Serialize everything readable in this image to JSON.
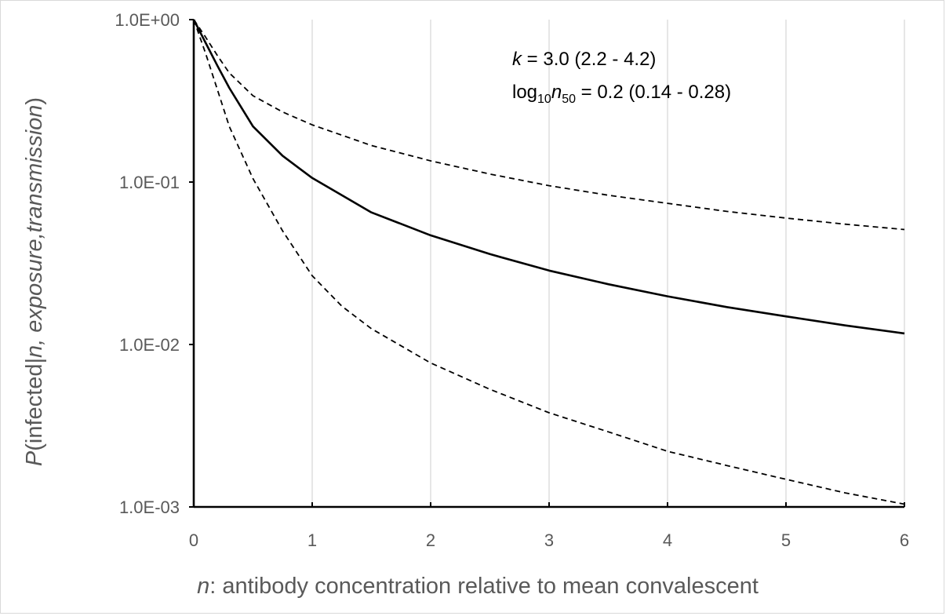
{
  "chart_data": {
    "type": "line",
    "title": "",
    "xlabel": {
      "var": "n",
      "rest": ": antibody concentration relative to mean convalescent"
    },
    "ylabel": {
      "p": "P",
      "open": "(infected",
      "bar": "|",
      "cond": "n, exposure,transmission",
      "close": ")"
    },
    "xlim": [
      0,
      6
    ],
    "ylim": [
      0.001,
      1
    ],
    "yscale": "log",
    "grid": "vertical",
    "x_ticks": [
      "0",
      "1",
      "2",
      "3",
      "4",
      "5",
      "6"
    ],
    "y_ticks": [
      "1.0E+00",
      "1.0E-01",
      "1.0E-02",
      "1.0E-03"
    ],
    "annotation": {
      "k_var": "k",
      "k_text": " = 3.0 (2.2 - 4.2)",
      "log_prefix": "log",
      "log_sub": "10",
      "n_var": "n",
      "n_sub": "50",
      "n50_text": " = 0.2 (0.14 - 0.28)"
    },
    "series": [
      {
        "style": "solid",
        "x": [
          0.0,
          0.1,
          0.2,
          0.3,
          0.5,
          0.75,
          1.0,
          1.5,
          2.0,
          2.5,
          3.0,
          3.5,
          4.0,
          4.5,
          5.0,
          5.5,
          6.0
        ],
        "y": [
          1.0,
          0.72,
          0.52,
          0.38,
          0.22,
          0.145,
          0.106,
          0.065,
          0.047,
          0.036,
          0.0285,
          0.0235,
          0.0198,
          0.017,
          0.0149,
          0.0131,
          0.0117
        ]
      },
      {
        "style": "dashed",
        "x": [
          0.0,
          0.1,
          0.2,
          0.3,
          0.5,
          0.75,
          1.0,
          1.5,
          2.0,
          2.5,
          3.0,
          3.5,
          4.0,
          4.5,
          5.0,
          5.5,
          6.0
        ],
        "y": [
          1.0,
          0.78,
          0.6,
          0.47,
          0.34,
          0.27,
          0.225,
          0.168,
          0.135,
          0.112,
          0.095,
          0.083,
          0.074,
          0.066,
          0.06,
          0.055,
          0.051
        ]
      },
      {
        "style": "dashed",
        "x": [
          0.0,
          0.1,
          0.2,
          0.3,
          0.5,
          0.75,
          1.0,
          1.25,
          1.5,
          2.0,
          2.5,
          3.0,
          3.5,
          4.0,
          4.5,
          5.0,
          5.5,
          6.0
        ],
        "y": [
          1.0,
          0.62,
          0.37,
          0.22,
          0.105,
          0.05,
          0.0265,
          0.0172,
          0.0125,
          0.0077,
          0.0053,
          0.0038,
          0.0029,
          0.0022,
          0.0018,
          0.00148,
          0.00122,
          0.00104
        ]
      }
    ]
  }
}
